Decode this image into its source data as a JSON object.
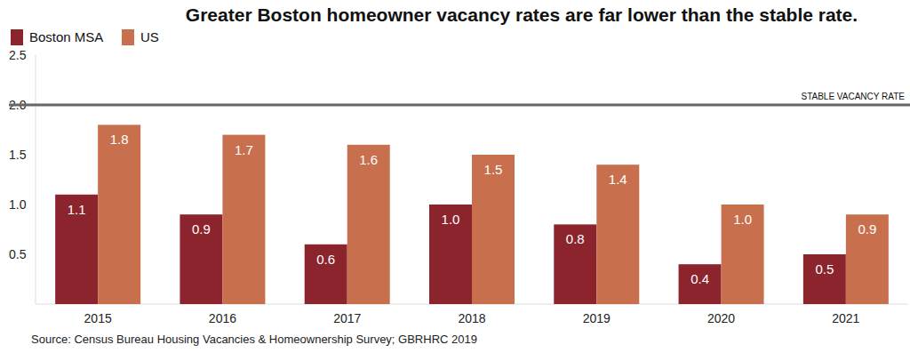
{
  "chart_data": {
    "type": "bar",
    "title": "Greater Boston homeowner vacancy rates are far lower than the stable rate.",
    "source": "Source: Census Bureau Housing Vacancies & Homeownership Survey; GBRHRC 2019",
    "categories": [
      "2015",
      "2016",
      "2017",
      "2018",
      "2019",
      "2020",
      "2021"
    ],
    "series": [
      {
        "name": "Boston MSA",
        "color": "#8c242d",
        "values": [
          1.1,
          0.9,
          0.6,
          1.0,
          0.8,
          0.4,
          0.5
        ],
        "value_labels": [
          "1.1",
          "0.9",
          "0.6",
          "1.0",
          "0.8",
          "0.4",
          "0.5"
        ]
      },
      {
        "name": "US",
        "color": "#c8704e",
        "values": [
          1.8,
          1.7,
          1.6,
          1.5,
          1.4,
          1.0,
          0.9
        ],
        "value_labels": [
          "1.8",
          "1.7",
          "1.6",
          "1.5",
          "1.4",
          "1.0",
          "0.9"
        ]
      }
    ],
    "ylim": [
      0,
      2.5
    ],
    "yticks": [
      0.5,
      {
        "value": 1,
        "label": "1.0"
      },
      1.5,
      {
        "value": 2,
        "label": "2.0"
      },
      2.5
    ],
    "annotations": [
      {
        "text": "STABLE VACANCY RATE",
        "y": 2
      }
    ],
    "grid": false,
    "legend": "top-left",
    "data_labels": true
  }
}
